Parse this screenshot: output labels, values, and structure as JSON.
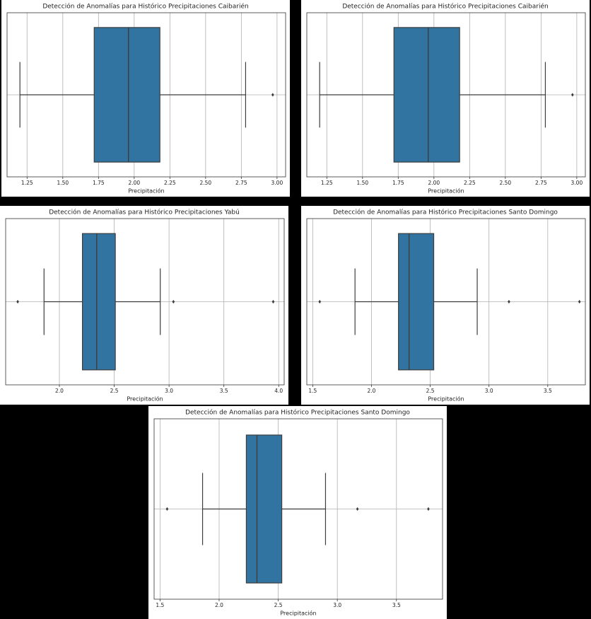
{
  "chart_data": [
    {
      "type": "box",
      "title": "Detección de Anomalías para Histórico Precipitaciones Caibarién",
      "xlabel": "Precipitación",
      "whisker_low": 1.2,
      "q1": 1.72,
      "median": 1.96,
      "q3": 2.18,
      "whisker_high": 2.78,
      "outliers": [
        2.97
      ],
      "xlim": [
        1.11,
        3.06
      ],
      "xticks": [
        1.25,
        {
          "value": 1.5,
          "label": "1.50"
        },
        1.75,
        {
          "value": 2,
          "label": "2.00"
        },
        2.25,
        {
          "value": 2.5,
          "label": "2.50"
        },
        2.75,
        {
          "value": 3,
          "label": "3.00"
        }
      ],
      "color": "#3274a1",
      "grid": true
    },
    {
      "type": "box",
      "title": "Detección de Anomalías para Histórico Precipitaciones Caibarién",
      "xlabel": "Precipitación",
      "whisker_low": 1.2,
      "q1": 1.72,
      "median": 1.96,
      "q3": 2.18,
      "whisker_high": 2.78,
      "outliers": [
        2.97
      ],
      "xlim": [
        1.11,
        3.06
      ],
      "xticks": [
        1.25,
        {
          "value": 1.5,
          "label": "1.50"
        },
        1.75,
        {
          "value": 2,
          "label": "2.00"
        },
        2.25,
        {
          "value": 2.5,
          "label": "2.50"
        },
        2.75,
        {
          "value": 3,
          "label": "3.00"
        }
      ],
      "color": "#3274a1",
      "grid": true
    },
    {
      "type": "box",
      "title": "Detección de Anomalías para Histórico Precipitaciones Yabú",
      "xlabel": "Precipitación",
      "whisker_low": 1.86,
      "q1": 2.21,
      "median": 2.34,
      "q3": 2.51,
      "whisker_high": 2.92,
      "outliers": [
        1.62,
        3.04,
        3.95
      ],
      "xlim": [
        1.51,
        4.05
      ],
      "xticks": [
        {
          "value": 2,
          "label": "2.0"
        },
        2.5,
        {
          "value": 3,
          "label": "3.0"
        },
        3.5,
        {
          "value": 4,
          "label": "4.0"
        }
      ],
      "color": "#3274a1",
      "grid": true
    },
    {
      "type": "box",
      "title": "Detección de Anomalías para Histórico Precipitaciones Santo Domingo",
      "xlabel": "Precipitación",
      "whisker_low": 1.86,
      "q1": 2.23,
      "median": 2.32,
      "q3": 2.53,
      "whisker_high": 2.9,
      "outliers": [
        1.56,
        3.17,
        3.77
      ],
      "xlim": [
        1.45,
        3.82
      ],
      "xticks": [
        1.5,
        {
          "value": 2,
          "label": "2.0"
        },
        2.5,
        {
          "value": 3,
          "label": "3.0"
        },
        3.5
      ],
      "color": "#3274a1",
      "grid": true
    },
    {
      "type": "box",
      "title": "Detección de Anomalías para Histórico Precipitaciones Santo Domingo",
      "xlabel": "Precipitación",
      "whisker_low": 1.86,
      "q1": 2.23,
      "median": 2.32,
      "q3": 2.53,
      "whisker_high": 2.9,
      "outliers": [
        1.56,
        3.17,
        3.77
      ],
      "xlim": [
        1.45,
        3.89
      ],
      "xticks": [
        1.5,
        {
          "value": 2,
          "label": "2.0"
        },
        2.5,
        {
          "value": 3,
          "label": "3.0"
        },
        3.5
      ],
      "color": "#3274a1",
      "grid": true
    }
  ]
}
